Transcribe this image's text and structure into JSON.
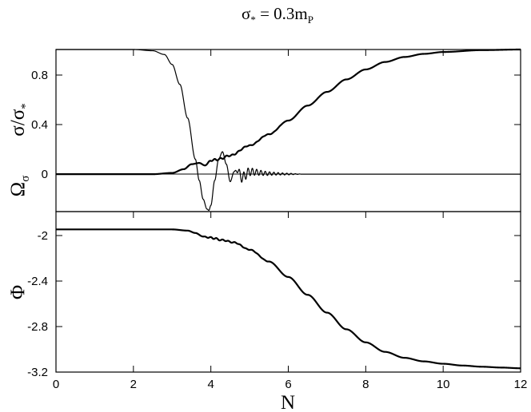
{
  "chart_data": {
    "type": "line",
    "title_main": "σ",
    "title_sub": "*",
    "title_rest": " = 0.3m",
    "title_end": "P",
    "xlabel": "N",
    "x_ticks": [
      "0",
      "2",
      "4",
      "6",
      "8",
      "10",
      "12"
    ],
    "xlim": [
      0,
      12
    ],
    "panels": [
      {
        "ylabel_sigma": "σ/σ",
        "ylabel_sigma_sub": "*",
        "ylabel_omega": "Ω",
        "ylabel_omega_sub": "σ",
        "ylim": [
          -0.3,
          1.0
        ],
        "y_ticks": [
          "0",
          "0.4",
          "0.8"
        ],
        "series": [
          {
            "x": [
              0,
              1,
              2,
              2.5,
              2.8,
              3.0,
              3.2,
              3.4,
              3.6,
              3.7,
              3.8,
              3.9,
              3.95,
              4.0,
              4.1,
              4.2,
              4.3,
              4.4,
              4.5,
              4.6,
              4.7,
              4.8,
              5.0,
              5.5,
              6.0,
              6.5
            ],
            "y": [
              1.0,
              1.0,
              1.0,
              0.99,
              0.96,
              0.88,
              0.72,
              0.45,
              0.12,
              -0.05,
              -0.2,
              -0.28,
              -0.29,
              -0.25,
              -0.05,
              0.12,
              0.18,
              0.08,
              -0.06,
              0.02,
              0.03,
              -0.03,
              0.02,
              0.005,
              0.001,
              0.0
            ],
            "oscillation": {
              "start": 4.6,
              "end": 6.4,
              "freq": 9.0,
              "amp": 0.06,
              "decay": 1.6
            }
          },
          {
            "x": [
              0,
              2.5,
              3.0,
              3.3,
              3.5,
              3.7,
              3.85,
              4.0,
              4.2,
              4.5,
              5.0,
              5.5,
              6.0,
              6.5,
              7.0,
              7.5,
              8.0,
              8.5,
              9.0,
              9.5,
              10.0,
              11.0,
              12.0
            ],
            "y": [
              0.0,
              0.0,
              0.01,
              0.04,
              0.08,
              0.09,
              0.07,
              0.11,
              0.12,
              0.15,
              0.23,
              0.32,
              0.43,
              0.55,
              0.66,
              0.76,
              0.84,
              0.9,
              0.94,
              0.965,
              0.98,
              0.995,
              1.0
            ],
            "wiggle": {
              "start": 3.9,
              "end": 5.8,
              "freq": 6.5,
              "amp": 0.012
            }
          }
        ]
      },
      {
        "ylabel": "Φ",
        "ylim": [
          -3.2,
          -1.85
        ],
        "y_ticks": [
          "-2",
          "-2.4",
          "-2.8",
          "-3.2"
        ],
        "series": [
          {
            "x": [
              0,
              2.5,
              3.0,
              3.4,
              3.6,
              3.8,
              4.0,
              4.3,
              4.6,
              5.0,
              5.5,
              6.0,
              6.5,
              7.0,
              7.5,
              8.0,
              8.5,
              9.0,
              9.5,
              10.0,
              10.5,
              11.0,
              11.5,
              12.0
            ],
            "y": [
              -2.0,
              -2.0,
              -2.0,
              -2.01,
              -2.03,
              -2.06,
              -2.07,
              -2.09,
              -2.11,
              -2.17,
              -2.27,
              -2.4,
              -2.55,
              -2.7,
              -2.84,
              -2.95,
              -3.03,
              -3.08,
              -3.11,
              -3.13,
              -3.145,
              -3.155,
              -3.162,
              -3.168
            ],
            "wiggle": {
              "start": 3.8,
              "end": 5.5,
              "freq": 6.5,
              "amp": 0.01
            }
          }
        ]
      }
    ]
  }
}
